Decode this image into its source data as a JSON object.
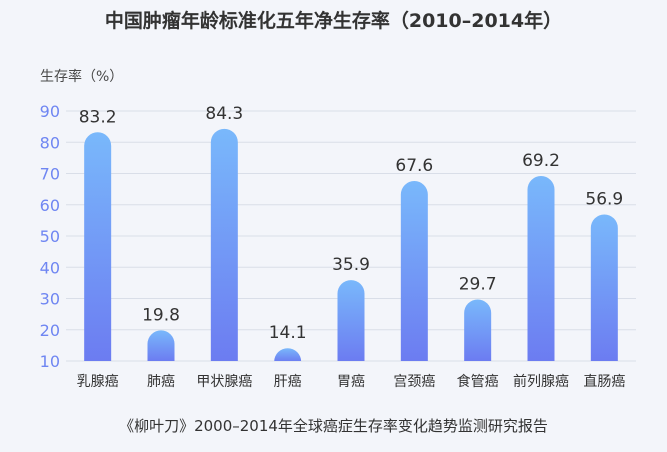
{
  "title": "中国肿瘤年龄标准化五年净生存率（2010–2014年）",
  "source": "《柳叶刀》2000–2014年全球癌症生存率变化趋势监测研究报告",
  "colors": {
    "bar_top": "#79b8fb",
    "bar_bottom": "#6c7cf1",
    "tick_label": "#6f86f2",
    "grid": "#d9dee8",
    "text": "#333333"
  },
  "chart_data": {
    "type": "bar",
    "title": "中国肿瘤年龄标准化五年净生存率（2010–2014年）",
    "ylabel": "生存率（%）",
    "xlabel": "",
    "ylim": [
      10,
      90
    ],
    "yticks": [
      10,
      20,
      30,
      40,
      50,
      60,
      70,
      80,
      90
    ],
    "grid": true,
    "categories": [
      "乳腺癌",
      "肺癌",
      "甲状腺癌",
      "肝癌",
      "胃癌",
      "宫颈癌",
      "食管癌",
      "前列腺癌",
      "直肠癌"
    ],
    "values": [
      83.2,
      19.8,
      84.3,
      14.1,
      35.9,
      67.6,
      29.7,
      69.2,
      56.9
    ],
    "value_labels": [
      "83.2",
      "19.8",
      "84.3",
      "14.1",
      "35.9",
      "67.6",
      "29.7",
      "69.2",
      "56.9"
    ]
  }
}
